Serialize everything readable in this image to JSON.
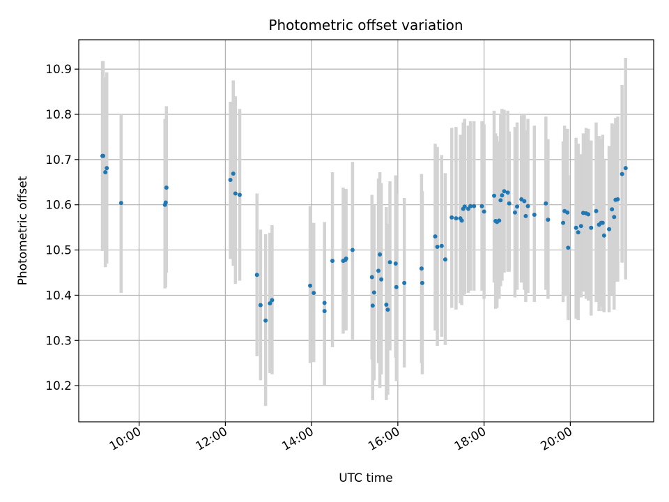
{
  "chart_data": {
    "type": "scatter",
    "title": "Photometric offset variation",
    "xlabel": "UTC time",
    "ylabel": "Photometric offset",
    "x_unit": "UTC time of day",
    "xlim": [
      "08:36",
      "21:56"
    ],
    "ylim": [
      10.12,
      10.965
    ],
    "x_ticks": [
      "10:00",
      "12:00",
      "14:00",
      "16:00",
      "18:00",
      "20:00"
    ],
    "y_ticks": [
      10.2,
      10.3,
      10.4,
      10.5,
      10.6,
      10.7,
      10.8,
      10.9
    ],
    "y_tick_labels": [
      "10.2",
      "10.3",
      "10.4",
      "10.5",
      "10.6",
      "10.7",
      "10.8",
      "10.9"
    ],
    "grid": true,
    "colors": {
      "point": "#1f77b4",
      "errorbar": "#d3d3d3",
      "grid": "#b0b0b0"
    },
    "series": [
      {
        "x": [
          "09:09",
          "09:10",
          "09:13",
          "09:15",
          "09:35",
          "10:36",
          "10:37",
          "10:38",
          "12:07",
          "12:11",
          "12:14",
          "12:20",
          "12:44",
          "12:49",
          "12:56",
          "13:02",
          "13:05",
          "13:58",
          "14:03",
          "14:18",
          "14:18",
          "14:29",
          "14:44",
          "14:47",
          "14:48",
          "14:57",
          "15:24",
          "15:25",
          "15:27",
          "15:33",
          "15:35",
          "15:37",
          "15:44",
          "15:46",
          "15:49",
          "15:57",
          "15:58",
          "16:09",
          "16:33",
          "16:34",
          "16:52",
          "16:55",
          "17:01",
          "17:06",
          "17:15",
          "17:21",
          "17:27",
          "17:29",
          "17:31",
          "17:33",
          "17:38",
          "17:41",
          "17:46",
          "17:57",
          "18:00",
          "18:14",
          "18:16",
          "18:18",
          "18:21",
          "18:23",
          "18:25",
          "18:28",
          "18:33",
          "18:35",
          "18:43",
          "18:46",
          "18:52",
          "18:56",
          "18:58",
          "19:01",
          "19:10",
          "19:26",
          "19:29",
          "19:50",
          "19:52",
          "19:56",
          "19:57",
          "20:08",
          "20:11",
          "20:15",
          "20:18",
          "20:22",
          "20:25",
          "20:29",
          "20:36",
          "20:40",
          "20:43",
          "20:45",
          "20:47",
          "20:54",
          "20:58",
          "21:01",
          "21:03",
          "21:06",
          "21:12",
          "21:17"
        ],
        "y": [
          10.708,
          10.708,
          10.672,
          10.681,
          10.604,
          10.6,
          10.605,
          10.638,
          10.655,
          10.669,
          10.625,
          10.622,
          10.445,
          10.378,
          10.344,
          10.382,
          10.389,
          10.421,
          10.405,
          10.383,
          10.365,
          10.476,
          10.476,
          10.478,
          10.481,
          10.5,
          10.44,
          10.377,
          10.406,
          10.454,
          10.49,
          10.435,
          10.379,
          10.368,
          10.473,
          10.47,
          10.418,
          10.427,
          10.459,
          10.427,
          10.53,
          10.507,
          10.509,
          10.479,
          10.572,
          10.57,
          10.57,
          10.565,
          10.591,
          10.596,
          10.591,
          10.597,
          10.597,
          10.597,
          10.585,
          10.62,
          10.564,
          10.562,
          10.565,
          10.61,
          10.621,
          10.63,
          10.627,
          10.603,
          10.583,
          10.596,
          10.612,
          10.608,
          10.575,
          10.597,
          10.578,
          10.603,
          10.567,
          10.56,
          10.586,
          10.583,
          10.505,
          10.549,
          10.539,
          10.553,
          10.582,
          10.581,
          10.579,
          10.549,
          10.586,
          10.556,
          10.56,
          10.56,
          10.532,
          10.546,
          10.59,
          10.573,
          10.611,
          10.612,
          10.668,
          10.681
        ],
        "yerr_low": [
          10.498,
          10.5,
          10.462,
          10.47,
          10.405,
          10.415,
          10.418,
          10.45,
          10.48,
          10.465,
          10.425,
          10.432,
          10.265,
          10.212,
          10.155,
          10.228,
          10.225,
          10.25,
          10.252,
          10.202,
          10.202,
          10.285,
          10.315,
          10.325,
          10.322,
          10.302,
          10.258,
          10.168,
          10.212,
          10.25,
          10.195,
          10.225,
          10.168,
          10.18,
          10.278,
          10.262,
          10.21,
          10.24,
          10.25,
          10.225,
          10.322,
          10.288,
          10.308,
          10.29,
          10.372,
          10.368,
          10.382,
          10.378,
          10.4,
          10.402,
          10.405,
          10.41,
          10.41,
          10.41,
          10.392,
          10.428,
          10.37,
          10.372,
          10.392,
          10.42,
          10.432,
          10.45,
          10.452,
          10.452,
          10.395,
          10.412,
          10.428,
          10.412,
          10.385,
          10.405,
          10.385,
          10.412,
          10.392,
          10.385,
          10.398,
          10.398,
          10.345,
          10.348,
          10.345,
          10.395,
          10.408,
          10.392,
          10.388,
          10.355,
          10.385,
          10.365,
          10.375,
          10.365,
          10.362,
          10.362,
          10.4,
          10.368,
          10.43,
          10.43,
          10.472,
          10.435
        ],
        "yerr_high": [
          10.918,
          10.918,
          10.882,
          10.893,
          10.8,
          10.79,
          10.79,
          10.818,
          10.828,
          10.875,
          10.84,
          10.812,
          10.625,
          10.545,
          10.535,
          10.538,
          10.555,
          10.597,
          10.56,
          10.562,
          10.535,
          10.672,
          10.638,
          10.632,
          10.635,
          10.695,
          10.622,
          10.588,
          10.6,
          10.658,
          10.672,
          10.648,
          10.595,
          10.558,
          10.652,
          10.665,
          10.625,
          10.615,
          10.668,
          10.63,
          10.735,
          10.728,
          10.71,
          10.67,
          10.77,
          10.772,
          10.755,
          10.752,
          10.782,
          10.79,
          10.775,
          10.785,
          10.785,
          10.785,
          10.778,
          10.808,
          10.758,
          10.752,
          10.74,
          10.8,
          10.812,
          10.81,
          10.808,
          10.762,
          10.772,
          10.782,
          10.798,
          10.8,
          10.765,
          10.79,
          10.775,
          10.795,
          10.745,
          10.74,
          10.775,
          10.768,
          10.665,
          10.748,
          10.735,
          10.712,
          10.758,
          10.77,
          10.768,
          10.742,
          10.782,
          10.752,
          10.745,
          10.755,
          10.702,
          10.73,
          10.78,
          10.778,
          10.792,
          10.795,
          10.865,
          10.925
        ]
      }
    ]
  }
}
